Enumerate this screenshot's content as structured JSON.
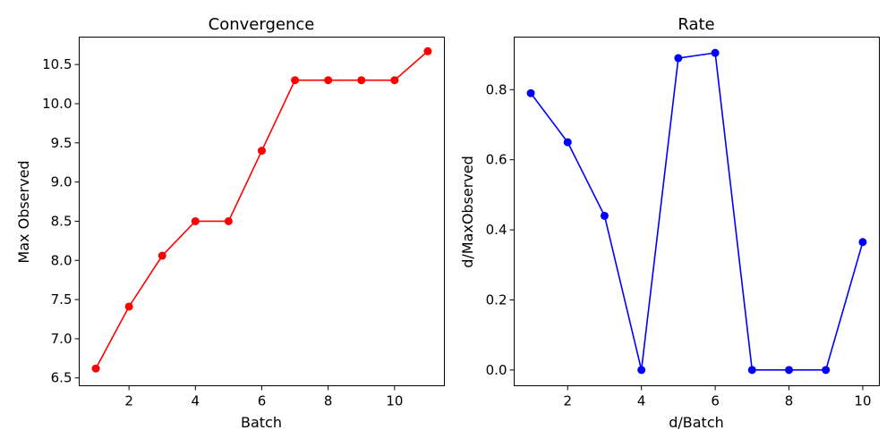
{
  "chart_data": [
    {
      "type": "line",
      "title": "Convergence",
      "xlabel": "Batch",
      "ylabel": "Max Observed",
      "xlim": [
        0.5,
        11.5
      ],
      "ylim": [
        6.4,
        10.85
      ],
      "xticks": [
        2,
        4,
        6,
        8,
        10
      ],
      "yticks": [
        6.5,
        7.0,
        7.5,
        8.0,
        8.5,
        9.0,
        9.5,
        10.0,
        10.5
      ],
      "grid": false,
      "series": [
        {
          "color": "#ff0000",
          "marker": "circle",
          "x": [
            1,
            2,
            3,
            4,
            5,
            6,
            7,
            8,
            9,
            10,
            11
          ],
          "y": [
            6.62,
            7.41,
            8.06,
            8.5,
            8.5,
            9.4,
            10.3,
            10.3,
            10.3,
            10.3,
            10.67
          ]
        }
      ]
    },
    {
      "type": "line",
      "title": "Rate",
      "xlabel": "d/Batch",
      "ylabel": "d/MaxObserved",
      "xlim": [
        0.55,
        10.45
      ],
      "ylim": [
        -0.045,
        0.95
      ],
      "xticks": [
        2,
        4,
        6,
        8,
        10
      ],
      "yticks": [
        0.0,
        0.2,
        0.4,
        0.6,
        0.8
      ],
      "grid": false,
      "series": [
        {
          "color": "#0000ff",
          "marker": "circle",
          "x": [
            1,
            2,
            3,
            4,
            5,
            6,
            7,
            8,
            9,
            10
          ],
          "y": [
            0.79,
            0.65,
            0.44,
            0.0,
            0.89,
            0.905,
            0.0,
            0.0,
            0.0,
            0.365
          ]
        }
      ]
    }
  ]
}
